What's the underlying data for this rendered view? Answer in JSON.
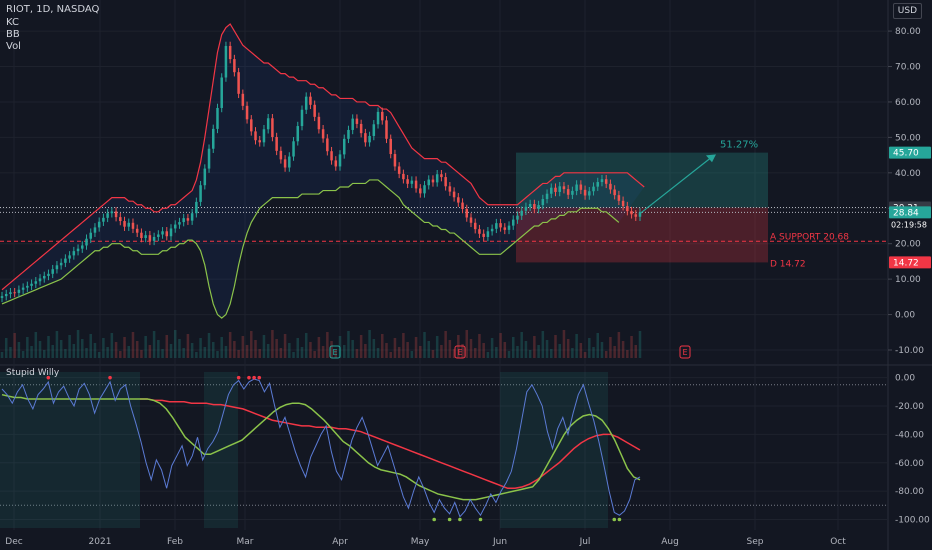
{
  "header": {
    "symbol_line": "RIOT, 1D, NASDAQ",
    "indicators": [
      "KC",
      "BB",
      "Vol"
    ],
    "currency": "USD"
  },
  "oscillator": {
    "title": "Stupid Willy"
  },
  "colors": {
    "bg": "#131722",
    "grid": "#1e222d",
    "up": "#26a69a",
    "down": "#ef5350",
    "upper_band": "#f23645",
    "lower_band": "#8bc34a",
    "osc_line": "#5b7bd5",
    "osc_green": "#8bc34a",
    "osc_red": "#f23645"
  },
  "chart_data": [
    {
      "type": "candlestick",
      "title": "RIOT, 1D, NASDAQ",
      "xlabel": "",
      "ylabel": "",
      "x_ticks": [
        "Dec",
        "2021",
        "Feb",
        "Mar",
        "Apr",
        "May",
        "Jun",
        "Jul",
        "Aug",
        "Sep",
        "Oct"
      ],
      "y_ticks": [
        "80.00",
        "70.00",
        "60.00",
        "50.00",
        "40.00",
        "30.00",
        "20.00",
        "10.00",
        "0.00",
        "-10.00"
      ],
      "ylim": [
        -10,
        82
      ],
      "price_labels": [
        {
          "value": 45.7,
          "text": "45.70",
          "color": "#26a69a"
        },
        {
          "value": 30.21,
          "text": "30.21",
          "color": "#363a45"
        },
        {
          "value": 28.84,
          "text": "28.84",
          "color": "#26a69a"
        },
        {
          "value": 14.72,
          "text": "14.72",
          "color": "#f23645"
        }
      ],
      "countdown": "02:19:58",
      "annotations": [
        {
          "text": "51.27%",
          "x": "Jul",
          "y": 48
        },
        {
          "text": "A SUPPORT 20.68",
          "y": 20.68
        },
        {
          "text": "D 14.72",
          "y": 14.72
        }
      ],
      "position": {
        "entry": 30.21,
        "target": 45.7,
        "stop": 14.72,
        "start": "Jun",
        "end": "Sep"
      },
      "events": [
        "E",
        "E",
        "E"
      ],
      "closes": [
        5.2,
        5.8,
        6.3,
        6.1,
        7.0,
        7.6,
        8.1,
        8.7,
        9.4,
        10.2,
        10.9,
        11.5,
        12.8,
        13.9,
        14.6,
        15.8,
        16.7,
        17.9,
        18.6,
        19.5,
        21.4,
        23.1,
        24.6,
        26.2,
        27.3,
        28.6,
        29.1,
        27.5,
        26.4,
        24.8,
        25.9,
        24.2,
        23.1,
        21.6,
        22.4,
        20.8,
        21.9,
        22.6,
        23.5,
        22.1,
        24.3,
        25.4,
        26.1,
        27.2,
        26.5,
        28.6,
        31.8,
        36.5,
        41.2,
        46.8,
        52.4,
        58.3,
        66.9,
        75.8,
        72.1,
        68.4,
        62.3,
        58.9,
        55.1,
        51.7,
        49.2,
        48.6,
        52.3,
        55.4,
        50.1,
        46.2,
        43.8,
        41.5,
        44.6,
        48.9,
        53.2,
        57.8,
        61.5,
        59.2,
        55.8,
        52.3,
        49.7,
        46.1,
        43.5,
        41.8,
        45.2,
        49.6,
        52.1,
        55.3,
        53.8,
        51.2,
        48.6,
        50.4,
        53.7,
        57.2,
        54.8,
        49.6,
        45.3,
        41.8,
        39.7,
        38.2,
        36.9,
        37.8,
        35.6,
        34.2,
        36.5,
        38.1,
        37.3,
        39.6,
        38.8,
        36.2,
        34.7,
        33.1,
        31.6,
        29.8,
        27.4,
        25.9,
        24.1,
        22.8,
        21.9,
        23.5,
        24.2,
        25.8,
        24.6,
        23.9,
        25.1,
        26.8,
        27.9,
        29.3,
        30.4,
        31.2,
        29.8,
        30.9,
        32.6,
        34.1,
        35.8,
        34.6,
        36.2,
        35.4,
        33.8,
        34.9,
        36.7,
        35.2,
        33.6,
        34.8,
        36.1,
        37.4,
        38.2,
        36.9,
        35.3,
        33.7,
        32.1,
        30.6,
        29.2,
        28.3,
        27.6,
        28.84
      ],
      "upper_band": [
        7,
        8,
        9,
        10,
        11,
        12,
        13,
        14,
        15,
        16,
        17,
        18,
        19,
        20,
        21,
        22,
        23,
        24,
        25,
        26,
        27,
        28,
        29,
        30,
        31,
        32,
        33,
        33,
        33,
        33,
        32,
        32,
        31,
        31,
        30,
        30,
        29,
        29,
        30,
        30,
        31,
        31,
        32,
        33,
        34,
        35,
        38,
        43,
        50,
        58,
        66,
        74,
        79,
        81,
        82,
        80,
        78,
        76,
        75,
        74,
        73,
        72,
        71,
        71,
        70,
        69,
        68,
        68,
        67,
        67,
        66,
        66,
        66,
        65,
        65,
        64,
        64,
        63,
        62,
        62,
        61,
        61,
        61,
        61,
        60,
        60,
        60,
        59,
        59,
        59,
        58,
        58,
        57,
        55,
        53,
        51,
        49,
        47,
        46,
        45,
        44,
        44,
        44,
        44,
        43,
        43,
        42,
        41,
        40,
        39,
        38,
        37,
        35,
        33,
        32,
        31,
        31,
        31,
        31,
        31,
        31,
        31,
        31,
        32,
        33,
        34,
        35,
        36,
        37,
        37,
        38,
        39,
        39,
        40,
        40,
        40,
        40,
        40,
        40,
        40,
        40,
        40,
        40,
        40,
        40,
        40,
        40,
        40,
        40,
        39,
        38,
        37,
        36
      ],
      "lower_band": [
        3,
        3.5,
        4,
        4.5,
        5,
        5.5,
        6,
        6.5,
        7,
        7.5,
        8,
        8.5,
        9,
        9.5,
        10,
        11,
        12,
        13,
        14,
        15,
        16,
        17,
        18,
        18,
        19,
        19,
        20,
        20,
        20,
        19,
        19,
        18,
        18,
        17,
        17,
        17,
        17,
        17,
        18,
        18,
        19,
        19,
        20,
        20,
        21,
        21,
        20,
        18,
        14,
        8,
        3,
        0,
        -1,
        0,
        3,
        8,
        14,
        19,
        23,
        26,
        28,
        30,
        31,
        32,
        33,
        33,
        33,
        33,
        33,
        33,
        33,
        34,
        34,
        34,
        34,
        34,
        35,
        35,
        35,
        35,
        36,
        36,
        36,
        37,
        37,
        37,
        37,
        38,
        38,
        38,
        37,
        36,
        35,
        34,
        33,
        31,
        30,
        29,
        28,
        27,
        26,
        26,
        25,
        25,
        24,
        24,
        23,
        23,
        22,
        21,
        20,
        19,
        18,
        17,
        17,
        17,
        17,
        17,
        17,
        18,
        19,
        20,
        21,
        22,
        23,
        24,
        25,
        25,
        26,
        26,
        27,
        27,
        28,
        28,
        29,
        29,
        29,
        30,
        30,
        30,
        30,
        30,
        29,
        29,
        28,
        27,
        26
      ]
    },
    {
      "type": "line",
      "title": "Stupid Willy",
      "xlabel": "",
      "ylabel": "",
      "y_ticks": [
        "0.00",
        "-20.00",
        "-40.00",
        "-60.00",
        "-80.00",
        "-100.00"
      ],
      "ylim": [
        -106,
        4
      ],
      "series": [
        {
          "color": "#5b7bd5",
          "values": [
            -8,
            -12,
            -18,
            -10,
            -5,
            -15,
            -22,
            -12,
            -8,
            -3,
            -18,
            -10,
            -6,
            -14,
            -20,
            -8,
            -4,
            -12,
            -25,
            -15,
            -9,
            -3,
            -16,
            -8,
            -5,
            -20,
            -32,
            -45,
            -60,
            -72,
            -58,
            -65,
            -78,
            -62,
            -55,
            -48,
            -62,
            -55,
            -42,
            -58,
            -50,
            -45,
            -38,
            -25,
            -12,
            -5,
            -2,
            -8,
            -3,
            -1,
            -2,
            -10,
            -4,
            -20,
            -35,
            -28,
            -40,
            -52,
            -62,
            -70,
            -56,
            -48,
            -40,
            -34,
            -52,
            -66,
            -72,
            -58,
            -44,
            -35,
            -28,
            -38,
            -50,
            -62,
            -55,
            -48,
            -60,
            -72,
            -84,
            -92,
            -80,
            -70,
            -78,
            -88,
            -95,
            -86,
            -92,
            -96,
            -88,
            -98,
            -94,
            -86,
            -92,
            -97,
            -90,
            -82,
            -88,
            -80,
            -74,
            -66,
            -50,
            -30,
            -10,
            -5,
            -12,
            -20,
            -38,
            -50,
            -36,
            -28,
            -40,
            -25,
            -12,
            -5,
            -18,
            -30,
            -45,
            -62,
            -80,
            -95,
            -97,
            -94,
            -86,
            -72,
            -70
          ]
        },
        {
          "color": "#8bc34a",
          "values": [
            -12,
            -13,
            -14,
            -14,
            -15,
            -15,
            -15,
            -15,
            -15,
            -15,
            -15,
            -15,
            -15,
            -15,
            -15,
            -15,
            -15,
            -15,
            -15,
            -15,
            -15,
            -15,
            -15,
            -15,
            -16,
            -18,
            -22,
            -28,
            -35,
            -42,
            -46,
            -50,
            -54,
            -54,
            -52,
            -50,
            -48,
            -46,
            -44,
            -40,
            -36,
            -32,
            -28,
            -24,
            -21,
            -19,
            -18,
            -18,
            -19,
            -22,
            -26,
            -30,
            -35,
            -40,
            -45,
            -48,
            -52,
            -56,
            -60,
            -63,
            -65,
            -66,
            -67,
            -68,
            -70,
            -73,
            -76,
            -78,
            -80,
            -82,
            -83,
            -84,
            -85,
            -86,
            -86,
            -86,
            -85,
            -84,
            -83,
            -82,
            -81,
            -80,
            -79,
            -78,
            -77,
            -72,
            -64,
            -56,
            -48,
            -40,
            -34,
            -30,
            -27,
            -26,
            -27,
            -30,
            -36,
            -44,
            -54,
            -64,
            -70,
            -72
          ]
        },
        {
          "color": "#f23645",
          "values": [
            -15,
            -15,
            -16,
            -16,
            -17,
            -17,
            -17,
            -18,
            -18,
            -18,
            -19,
            -19,
            -20,
            -21,
            -22,
            -24,
            -26,
            -28,
            -30,
            -31,
            -32,
            -33,
            -34,
            -34,
            -35,
            -35,
            -35,
            -36,
            -36,
            -37,
            -38,
            -40,
            -42,
            -44,
            -46,
            -48,
            -50,
            -52,
            -54,
            -56,
            -58,
            -60,
            -62,
            -64,
            -66,
            -68,
            -70,
            -72,
            -74,
            -76,
            -78,
            -78,
            -77,
            -75,
            -72,
            -68,
            -64,
            -60,
            -55,
            -50,
            -46,
            -43,
            -41,
            -40,
            -40,
            -42,
            -45,
            -48,
            -51
          ]
        }
      ]
    }
  ]
}
